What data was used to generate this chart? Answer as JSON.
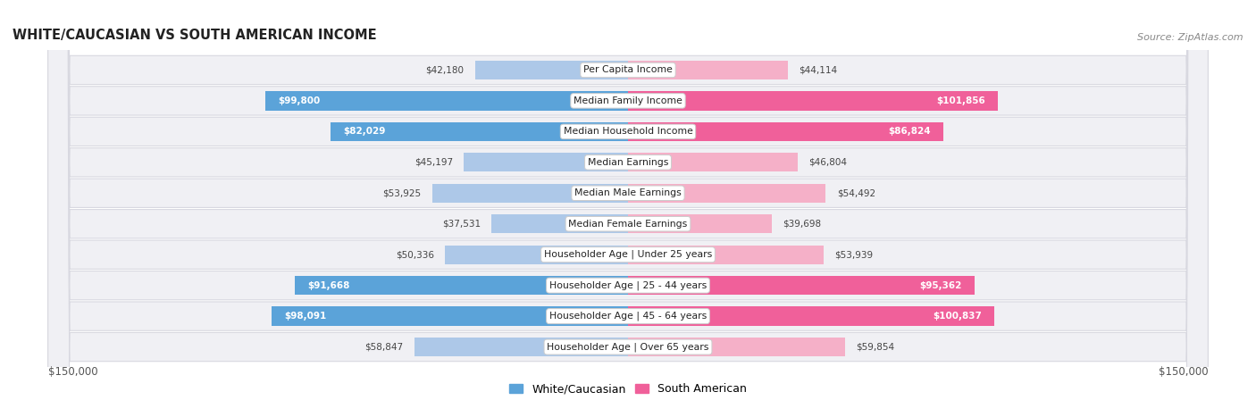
{
  "title": "White/Caucasian vs South American Income",
  "source": "Source: ZipAtlas.com",
  "categories": [
    "Per Capita Income",
    "Median Family Income",
    "Median Household Income",
    "Median Earnings",
    "Median Male Earnings",
    "Median Female Earnings",
    "Householder Age | Under 25 years",
    "Householder Age | 25 - 44 years",
    "Householder Age | 45 - 64 years",
    "Householder Age | Over 65 years"
  ],
  "white_values": [
    42180,
    99800,
    82029,
    45197,
    53925,
    37531,
    50336,
    91668,
    98091,
    58847
  ],
  "south_values": [
    44114,
    101856,
    86824,
    46804,
    54492,
    39698,
    53939,
    95362,
    100837,
    59854
  ],
  "white_labels": [
    "$42,180",
    "$99,800",
    "$82,029",
    "$45,197",
    "$53,925",
    "$37,531",
    "$50,336",
    "$91,668",
    "$98,091",
    "$58,847"
  ],
  "south_labels": [
    "$44,114",
    "$101,856",
    "$86,824",
    "$46,804",
    "$54,492",
    "$39,698",
    "$53,939",
    "$95,362",
    "$100,837",
    "$59,854"
  ],
  "white_color_light": "#adc8e8",
  "white_color_strong": "#5ba3d9",
  "south_color_light": "#f5b0c8",
  "south_color_strong": "#f0609a",
  "row_bg": "#f0f0f4",
  "row_edge": "#d8d8e0",
  "max_value": 150000,
  "legend_white": "White/Caucasian",
  "legend_south": "South American",
  "xlabel_left": "$150,000",
  "xlabel_right": "$150,000",
  "label_inside_threshold": 65000
}
